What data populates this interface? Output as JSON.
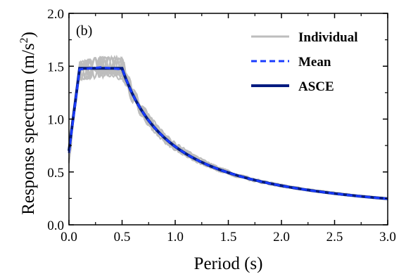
{
  "chart_data": {
    "type": "line",
    "panel_label": "(b)",
    "xlabel": "Period (s)",
    "ylabel_main": "Response spectrum (m/s",
    "ylabel_sup": "2",
    "ylabel_close": ")",
    "xlim": [
      0,
      3.0
    ],
    "ylim": [
      0,
      2.0
    ],
    "x_ticks": [
      "0.0",
      "0.5",
      "1.0",
      "1.5",
      "2.0",
      "2.5",
      "3.0"
    ],
    "y_ticks": [
      "0.0",
      "0.5",
      "1.0",
      "1.5",
      "2.0"
    ],
    "grid": false,
    "legend_position": "top-right",
    "legend": [
      {
        "name": "Individual",
        "color": "#bdbdbd",
        "style": "solid"
      },
      {
        "name": "Mean",
        "color": "#1a3cff",
        "style": "dashed"
      },
      {
        "name": "ASCE",
        "color": "#001a80",
        "style": "solid"
      }
    ],
    "series": [
      {
        "name": "ASCE",
        "color": "#001a80",
        "x": [
          0.0,
          0.1,
          0.5,
          0.6,
          0.7,
          0.8,
          0.9,
          1.0,
          1.2,
          1.4,
          1.6,
          1.8,
          2.0,
          2.25,
          2.5,
          2.75,
          3.0
        ],
        "y": [
          0.7,
          1.48,
          1.48,
          1.23,
          1.06,
          0.93,
          0.82,
          0.74,
          0.62,
          0.53,
          0.46,
          0.41,
          0.37,
          0.33,
          0.3,
          0.27,
          0.25
        ]
      },
      {
        "name": "Mean",
        "color": "#1a3cff",
        "x": [
          0.0,
          0.1,
          0.2,
          0.3,
          0.4,
          0.5,
          0.6,
          0.7,
          0.8,
          0.9,
          1.0,
          1.2,
          1.4,
          1.6,
          1.8,
          2.0,
          2.25,
          2.5,
          2.75,
          3.0
        ],
        "y": [
          0.68,
          1.47,
          1.48,
          1.49,
          1.48,
          1.47,
          1.22,
          1.05,
          0.93,
          0.82,
          0.74,
          0.62,
          0.53,
          0.46,
          0.41,
          0.37,
          0.33,
          0.3,
          0.27,
          0.25
        ]
      }
    ],
    "individual_base": {
      "name": "Individual",
      "color": "#bdbdbd",
      "count": 10
    }
  }
}
